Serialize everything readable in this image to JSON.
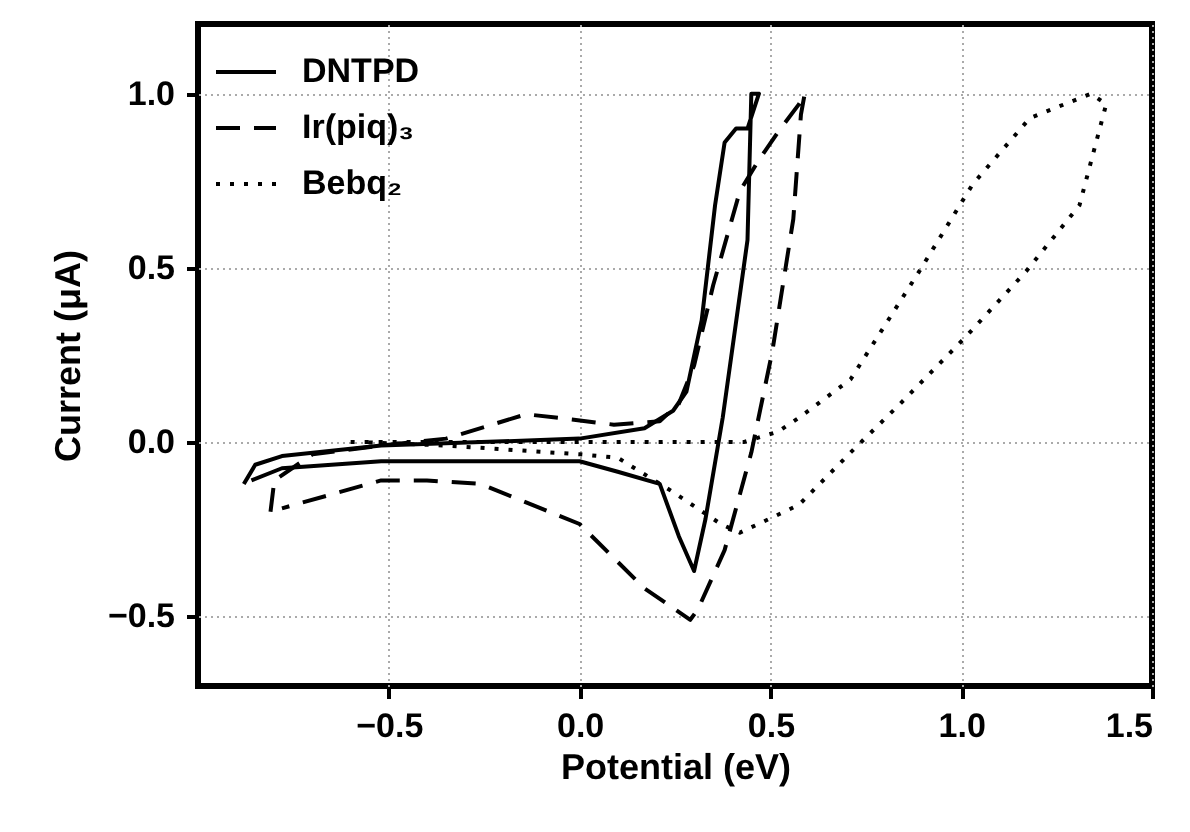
{
  "chart_data": {
    "type": "line",
    "xlabel": "Potential (eV)",
    "ylabel": "Current (μA)",
    "xlim": [
      -1.0,
      1.5
    ],
    "ylim": [
      -0.7,
      1.2
    ],
    "xticks": [
      -0.5,
      {
        "value": 0,
        "label": "0.0"
      },
      0.5,
      {
        "value": 1,
        "label": "1.0"
      },
      1.5
    ],
    "yticks": [
      -0.5,
      {
        "value": 0,
        "label": "0.0"
      },
      0.5,
      {
        "value": 1,
        "label": "1.0"
      }
    ],
    "grid": true,
    "legend": "top left",
    "marker": "none",
    "series": [
      {
        "name": "DNTPD",
        "color": "#000000",
        "line_style": "solid",
        "x": [
          -0.88,
          -0.85,
          -0.78,
          -0.52,
          0.0,
          0.17,
          0.245,
          0.28,
          0.32,
          0.355,
          0.38,
          0.41,
          0.44,
          0.47,
          0.45,
          0.44,
          0.375,
          0.33,
          0.3,
          0.26,
          0.21,
          0.1,
          0.0,
          -0.52,
          -0.78,
          -0.86
        ],
        "values": [
          -0.12,
          -0.065,
          -0.04,
          -0.01,
          0.01,
          0.04,
          0.09,
          0.145,
          0.35,
          0.68,
          0.86,
          0.9,
          0.9,
          1.0,
          1.0,
          0.58,
          0.07,
          -0.22,
          -0.37,
          -0.27,
          -0.12,
          -0.085,
          -0.055,
          -0.055,
          -0.075,
          -0.11
        ]
      },
      {
        "name": "Ir(piq)₃",
        "color": "#000000",
        "line_style": "dashed",
        "x": [
          -0.81,
          -0.8,
          -0.7,
          -0.52,
          -0.35,
          -0.14,
          -0.02,
          0.09,
          0.21,
          0.26,
          0.3,
          0.35,
          0.42,
          0.47,
          0.52,
          0.575,
          0.59,
          0.58,
          0.56,
          0.505,
          0.45,
          0.38,
          0.31,
          0.29,
          0.17,
          0.0,
          -0.26,
          -0.4,
          -0.52,
          -0.78
        ],
        "values": [
          -0.2,
          -0.11,
          -0.035,
          -0.01,
          0.01,
          0.08,
          0.065,
          0.05,
          0.06,
          0.11,
          0.22,
          0.45,
          0.72,
          0.81,
          0.89,
          0.97,
          1.0,
          0.94,
          0.64,
          0.26,
          -0.03,
          -0.31,
          -0.48,
          -0.51,
          -0.42,
          -0.235,
          -0.12,
          -0.11,
          -0.11,
          -0.19
        ]
      },
      {
        "name": "Bebq₂",
        "color": "#000000",
        "line_style": "dotted",
        "x": [
          -0.6,
          -0.3,
          0.0,
          0.43,
          0.52,
          0.575,
          0.71,
          0.89,
          1.03,
          1.18,
          1.34,
          1.38,
          1.31,
          1.17,
          1.01,
          0.84,
          0.71,
          0.575,
          0.42,
          0.37,
          0.24,
          0.1,
          0.0,
          -0.35,
          -0.57
        ],
        "values": [
          0.0,
          0.0,
          0.0,
          0.0,
          0.03,
          0.07,
          0.18,
          0.49,
          0.74,
          0.93,
          1.0,
          0.97,
          0.68,
          0.49,
          0.3,
          0.11,
          -0.03,
          -0.18,
          -0.26,
          -0.235,
          -0.14,
          -0.045,
          -0.035,
          -0.01,
          0.0
        ]
      }
    ]
  }
}
